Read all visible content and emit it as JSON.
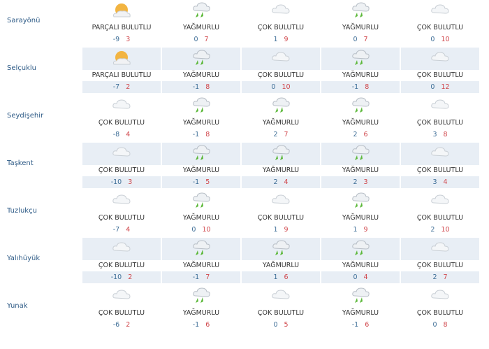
{
  "conditions": {
    "pb": "PARÇALI BULUTLU",
    "y": "YAĞMURLU",
    "cb": "ÇOK BULUTLU"
  },
  "colors": {
    "low": "#3d6d96",
    "high": "#d0454a",
    "shade": "#e8eef5",
    "rain": "#5cb83a"
  },
  "rows": [
    {
      "name": "Sarayönü",
      "days": [
        {
          "c": "PARÇALI BULUTLU",
          "icon": "partly-cloudy-icon",
          "lo": "-9",
          "hi": "3"
        },
        {
          "c": "YAĞMURLU",
          "icon": "rain-icon",
          "lo": "0",
          "hi": "7"
        },
        {
          "c": "ÇOK BULUTLU",
          "icon": "cloudy-icon",
          "lo": "1",
          "hi": "9"
        },
        {
          "c": "YAĞMURLU",
          "icon": "rain-icon",
          "lo": "0",
          "hi": "7"
        },
        {
          "c": "ÇOK BULUTLU",
          "icon": "cloudy-icon",
          "lo": "0",
          "hi": "10"
        }
      ]
    },
    {
      "name": "Selçuklu",
      "days": [
        {
          "c": "PARÇALI BULUTLU",
          "icon": "partly-cloudy-icon",
          "lo": "-7",
          "hi": "2"
        },
        {
          "c": "YAĞMURLU",
          "icon": "rain-icon",
          "lo": "-1",
          "hi": "8"
        },
        {
          "c": "ÇOK BULUTLU",
          "icon": "cloudy-icon",
          "lo": "0",
          "hi": "10"
        },
        {
          "c": "YAĞMURLU",
          "icon": "rain-icon",
          "lo": "-1",
          "hi": "8"
        },
        {
          "c": "ÇOK BULUTLU",
          "icon": "cloudy-icon",
          "lo": "0",
          "hi": "12"
        }
      ]
    },
    {
      "name": "Seydişehir",
      "days": [
        {
          "c": "ÇOK BULUTLU",
          "icon": "cloudy-icon",
          "lo": "-8",
          "hi": "4"
        },
        {
          "c": "YAĞMURLU",
          "icon": "rain-icon",
          "lo": "-1",
          "hi": "8"
        },
        {
          "c": "YAĞMURLU",
          "icon": "rain-icon",
          "lo": "2",
          "hi": "7"
        },
        {
          "c": "YAĞMURLU",
          "icon": "rain-icon",
          "lo": "2",
          "hi": "6"
        },
        {
          "c": "ÇOK BULUTLU",
          "icon": "cloudy-icon",
          "lo": "3",
          "hi": "8"
        }
      ]
    },
    {
      "name": "Taşkent",
      "days": [
        {
          "c": "ÇOK BULUTLU",
          "icon": "cloudy-icon",
          "lo": "-10",
          "hi": "3"
        },
        {
          "c": "YAĞMURLU",
          "icon": "rain-icon",
          "lo": "-1",
          "hi": "5"
        },
        {
          "c": "YAĞMURLU",
          "icon": "rain-icon",
          "lo": "2",
          "hi": "4"
        },
        {
          "c": "YAĞMURLU",
          "icon": "rain-icon",
          "lo": "2",
          "hi": "3"
        },
        {
          "c": "ÇOK BULUTLU",
          "icon": "cloudy-icon",
          "lo": "3",
          "hi": "4"
        }
      ]
    },
    {
      "name": "Tuzlukçu",
      "days": [
        {
          "c": "ÇOK BULUTLU",
          "icon": "cloudy-icon",
          "lo": "-7",
          "hi": "4"
        },
        {
          "c": "YAĞMURLU",
          "icon": "rain-icon",
          "lo": "0",
          "hi": "10"
        },
        {
          "c": "ÇOK BULUTLU",
          "icon": "cloudy-icon",
          "lo": "1",
          "hi": "9"
        },
        {
          "c": "YAĞMURLU",
          "icon": "rain-icon",
          "lo": "1",
          "hi": "9"
        },
        {
          "c": "ÇOK BULUTLU",
          "icon": "cloudy-icon",
          "lo": "2",
          "hi": "10"
        }
      ]
    },
    {
      "name": "Yalıhüyük",
      "days": [
        {
          "c": "ÇOK BULUTLU",
          "icon": "cloudy-icon",
          "lo": "-10",
          "hi": "2"
        },
        {
          "c": "YAĞMURLU",
          "icon": "rain-icon",
          "lo": "-1",
          "hi": "7"
        },
        {
          "c": "YAĞMURLU",
          "icon": "rain-icon",
          "lo": "1",
          "hi": "6"
        },
        {
          "c": "YAĞMURLU",
          "icon": "rain-icon",
          "lo": "0",
          "hi": "4"
        },
        {
          "c": "ÇOK BULUTLU",
          "icon": "cloudy-icon",
          "lo": "2",
          "hi": "7"
        }
      ]
    },
    {
      "name": "Yunak",
      "days": [
        {
          "c": "ÇOK BULUTLU",
          "icon": "cloudy-icon",
          "lo": "-6",
          "hi": "2"
        },
        {
          "c": "YAĞMURLU",
          "icon": "rain-icon",
          "lo": "-1",
          "hi": "6"
        },
        {
          "c": "ÇOK BULUTLU",
          "icon": "cloudy-icon",
          "lo": "0",
          "hi": "5"
        },
        {
          "c": "YAĞMURLU",
          "icon": "rain-icon",
          "lo": "-1",
          "hi": "6"
        },
        {
          "c": "ÇOK BULUTLU",
          "icon": "cloudy-icon",
          "lo": "0",
          "hi": "8"
        }
      ]
    }
  ]
}
